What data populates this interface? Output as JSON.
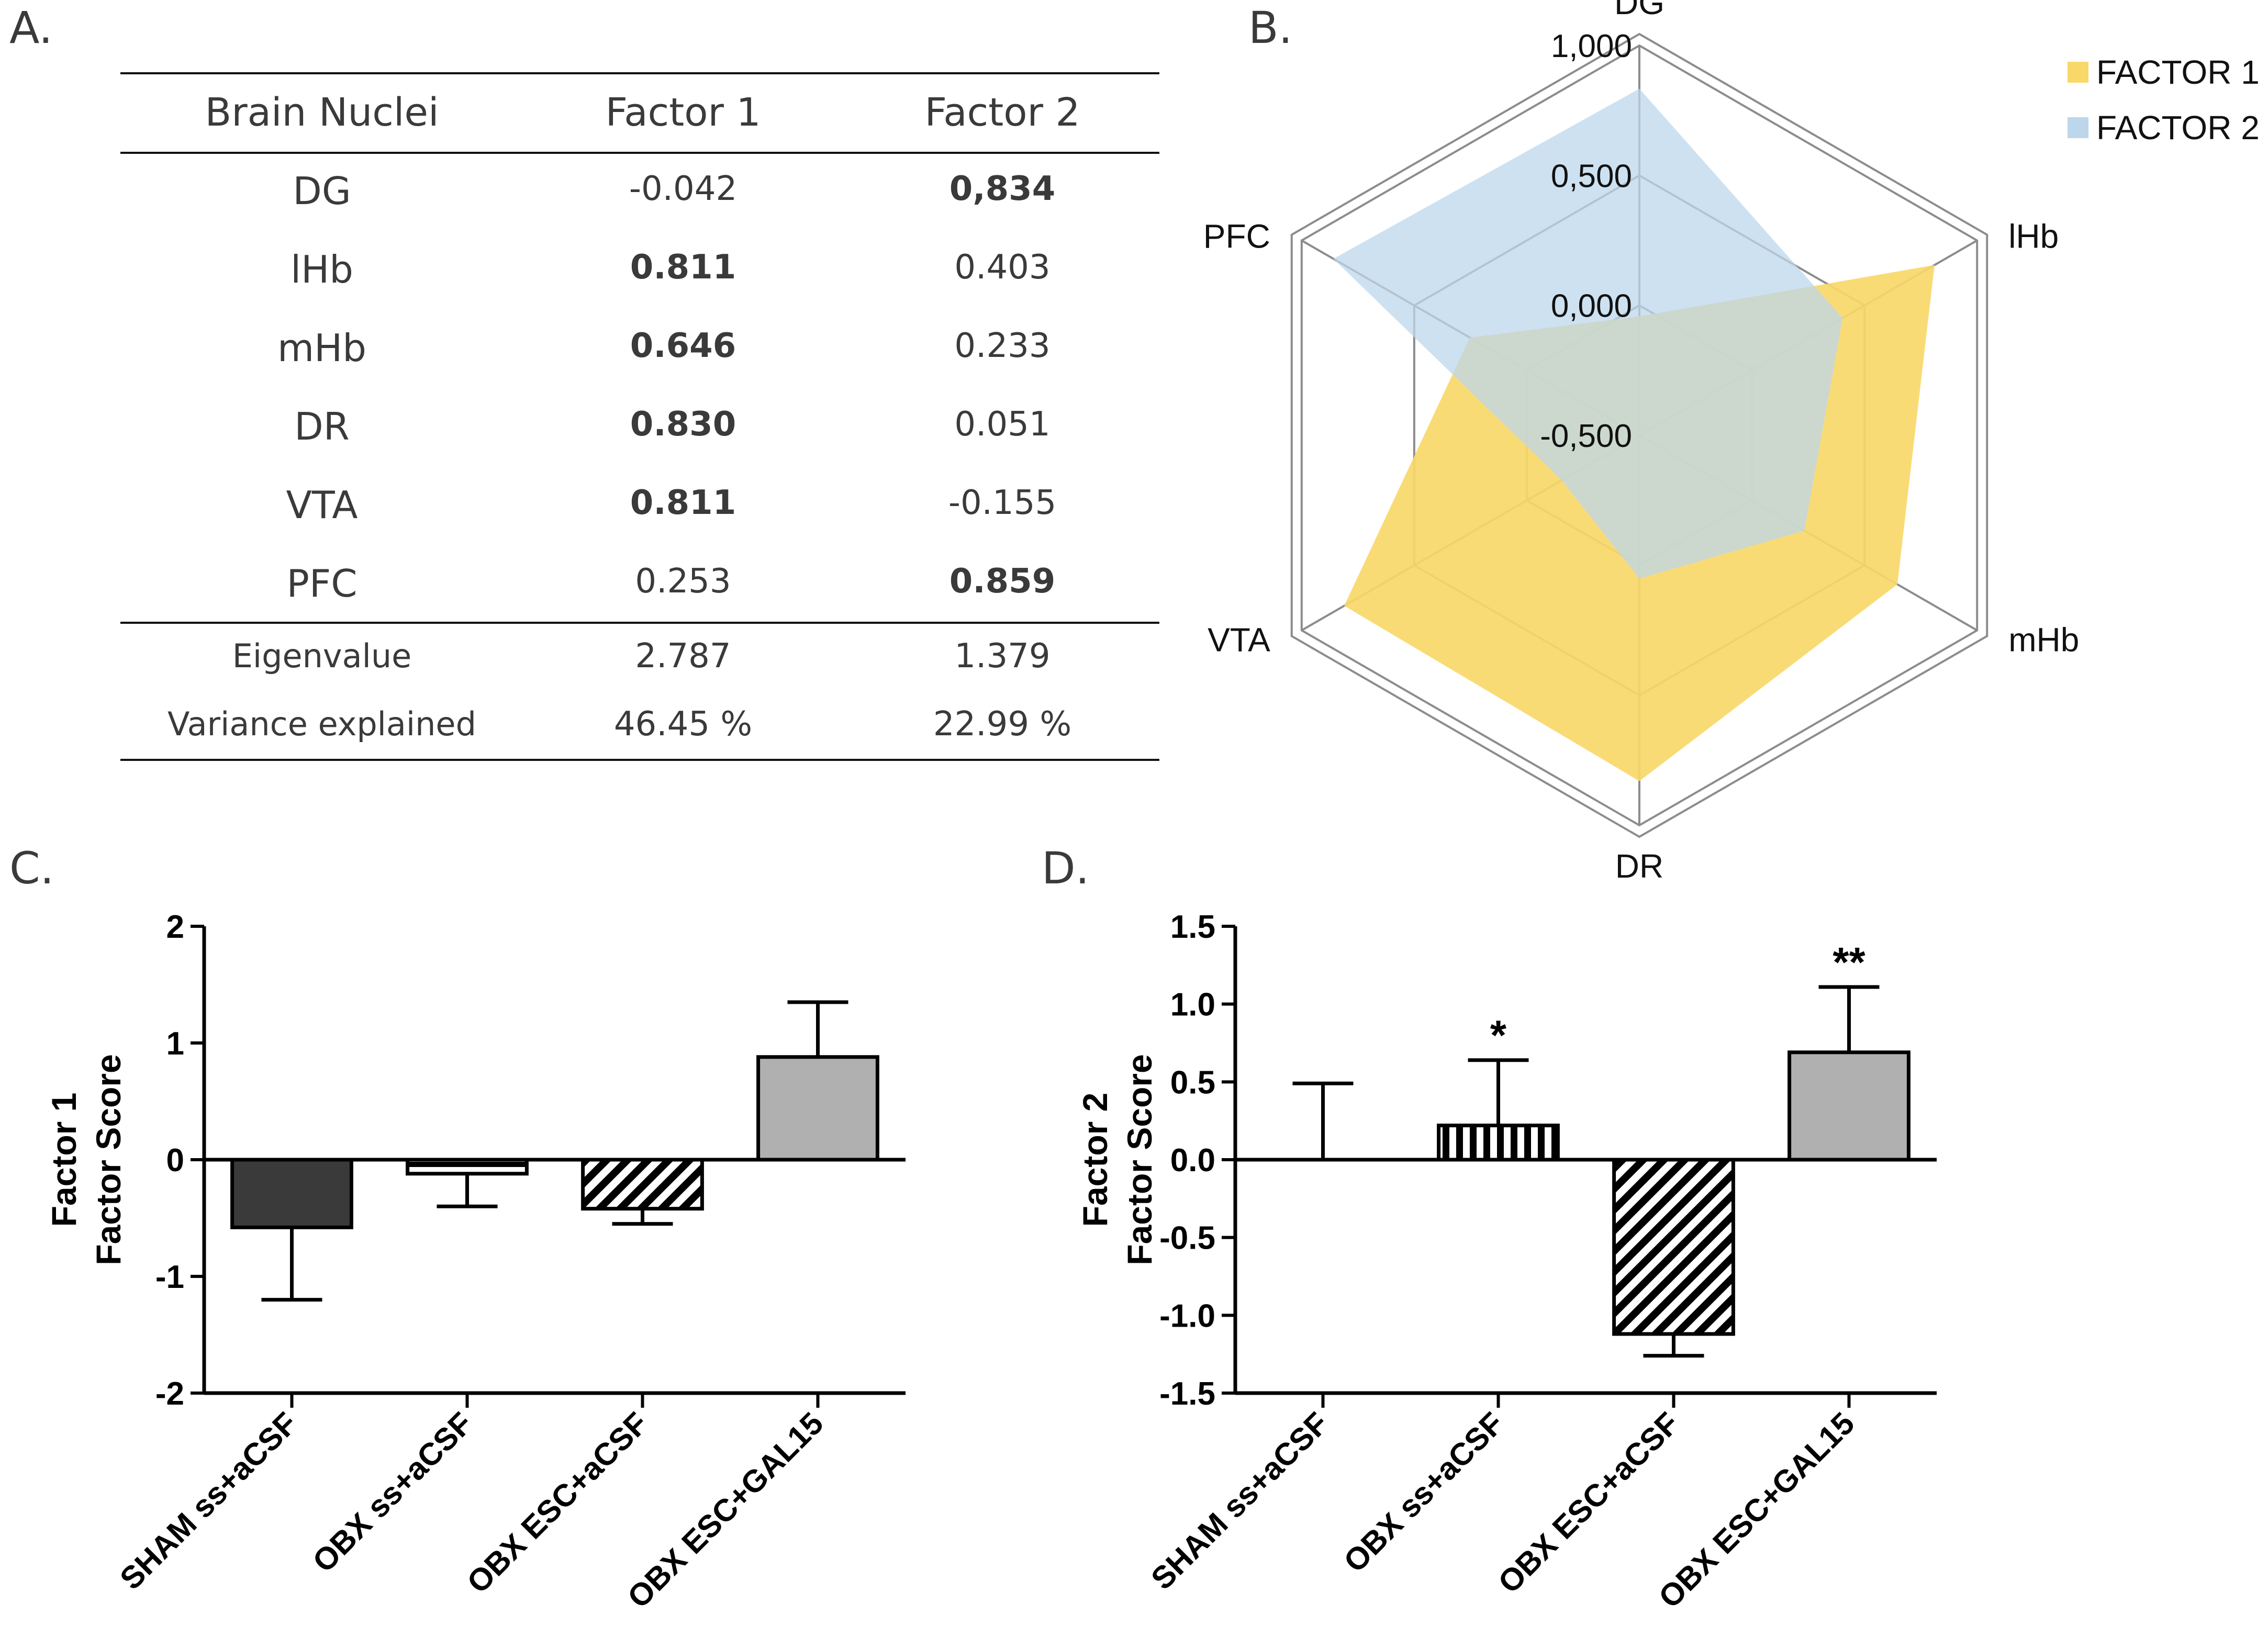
{
  "panel_labels": {
    "a": "A.",
    "b": "B.",
    "c": "C.",
    "d": "D."
  },
  "table": {
    "headers": [
      "Brain Nuclei",
      "Factor 1",
      "Factor 2"
    ],
    "rows": [
      {
        "nucleus": "DG",
        "f1": "-0.042",
        "f2": "0,834",
        "f1_bold": false,
        "f2_bold": true
      },
      {
        "nucleus": "lHb",
        "f1": "0.811",
        "f2": "0.403",
        "f1_bold": true,
        "f2_bold": false
      },
      {
        "nucleus": "mHb",
        "f1": "0.646",
        "f2": "0.233",
        "f1_bold": true,
        "f2_bold": false
      },
      {
        "nucleus": "DR",
        "f1": "0.830",
        "f2": "0.051",
        "f1_bold": true,
        "f2_bold": false
      },
      {
        "nucleus": "VTA",
        "f1": "0.811",
        "f2": "-0.155",
        "f1_bold": true,
        "f2_bold": false
      },
      {
        "nucleus": "PFC",
        "f1": "0.253",
        "f2": "0.859",
        "f1_bold": false,
        "f2_bold": true
      }
    ],
    "footer": [
      {
        "label": "Eigenvalue",
        "f1": "2.787",
        "f2": "1.379"
      },
      {
        "label": "Variance explained",
        "f1": "46.45 %",
        "f2": "22.99 %"
      }
    ]
  },
  "colors": {
    "factor1": "#f9d86a",
    "factor2": "#bcd7ec",
    "dark_bar": "#3a3a3a",
    "light_bar": "#b0b0b0"
  },
  "chart_data": [
    {
      "type": "radar",
      "axes": [
        "DG",
        "lHb",
        "mHb",
        "DR",
        "VTA",
        "PFC"
      ],
      "axis_labels": [
        "DG",
        "lHb",
        "mHb",
        "DR",
        "VTA",
        "PFC"
      ],
      "ticks": [
        "1,000",
        "0,500",
        "0,000",
        "-0,500"
      ],
      "range": [
        -0.5,
        1.0
      ],
      "legend_position": "top-right",
      "series": [
        {
          "name": "FACTOR 1",
          "values": [
            -0.042,
            0.811,
            0.646,
            0.83,
            0.811,
            0.253
          ]
        },
        {
          "name": "FACTOR 2",
          "values": [
            0.834,
            0.403,
            0.233,
            0.051,
            -0.155,
            0.859
          ]
        }
      ]
    },
    {
      "type": "bar",
      "categories": [
        "SHAM ss+aCSF",
        "OBX ss+aCSF",
        "OBX ESC+aCSF",
        "OBX ESC+GAL15"
      ],
      "values": [
        -0.58,
        -0.12,
        -0.42,
        0.88
      ],
      "errors": [
        0.62,
        0.28,
        0.13,
        0.47
      ],
      "patterns": [
        "dark",
        "hstripes",
        "diagonal",
        "light"
      ],
      "annotations": [
        "",
        "",
        "",
        ""
      ],
      "ylabel": [
        "Factor 1",
        "Factor Score"
      ],
      "ylim": [
        -2,
        2
      ],
      "ticks": [
        "-2",
        "-1",
        "0",
        "1",
        "2"
      ]
    },
    {
      "type": "bar",
      "categories": [
        "SHAM ss+aCSF",
        "OBX ss+aCSF",
        "OBX ESC+aCSF",
        "OBX ESC+GAL15"
      ],
      "values": [
        0.0,
        0.22,
        -1.12,
        0.69
      ],
      "errors": [
        0.49,
        0.42,
        0.14,
        0.42
      ],
      "patterns": [
        "dark",
        "vstripes",
        "diagonal",
        "light"
      ],
      "annotations": [
        "",
        "*",
        "",
        "**"
      ],
      "ylabel": [
        "Factor 2",
        "Factor Score"
      ],
      "ylim": [
        -1.5,
        1.5
      ],
      "ticks": [
        "-1.5",
        "-1.0",
        "-0.5",
        "0.0",
        "0.5",
        "1.0",
        "1.5"
      ]
    }
  ]
}
